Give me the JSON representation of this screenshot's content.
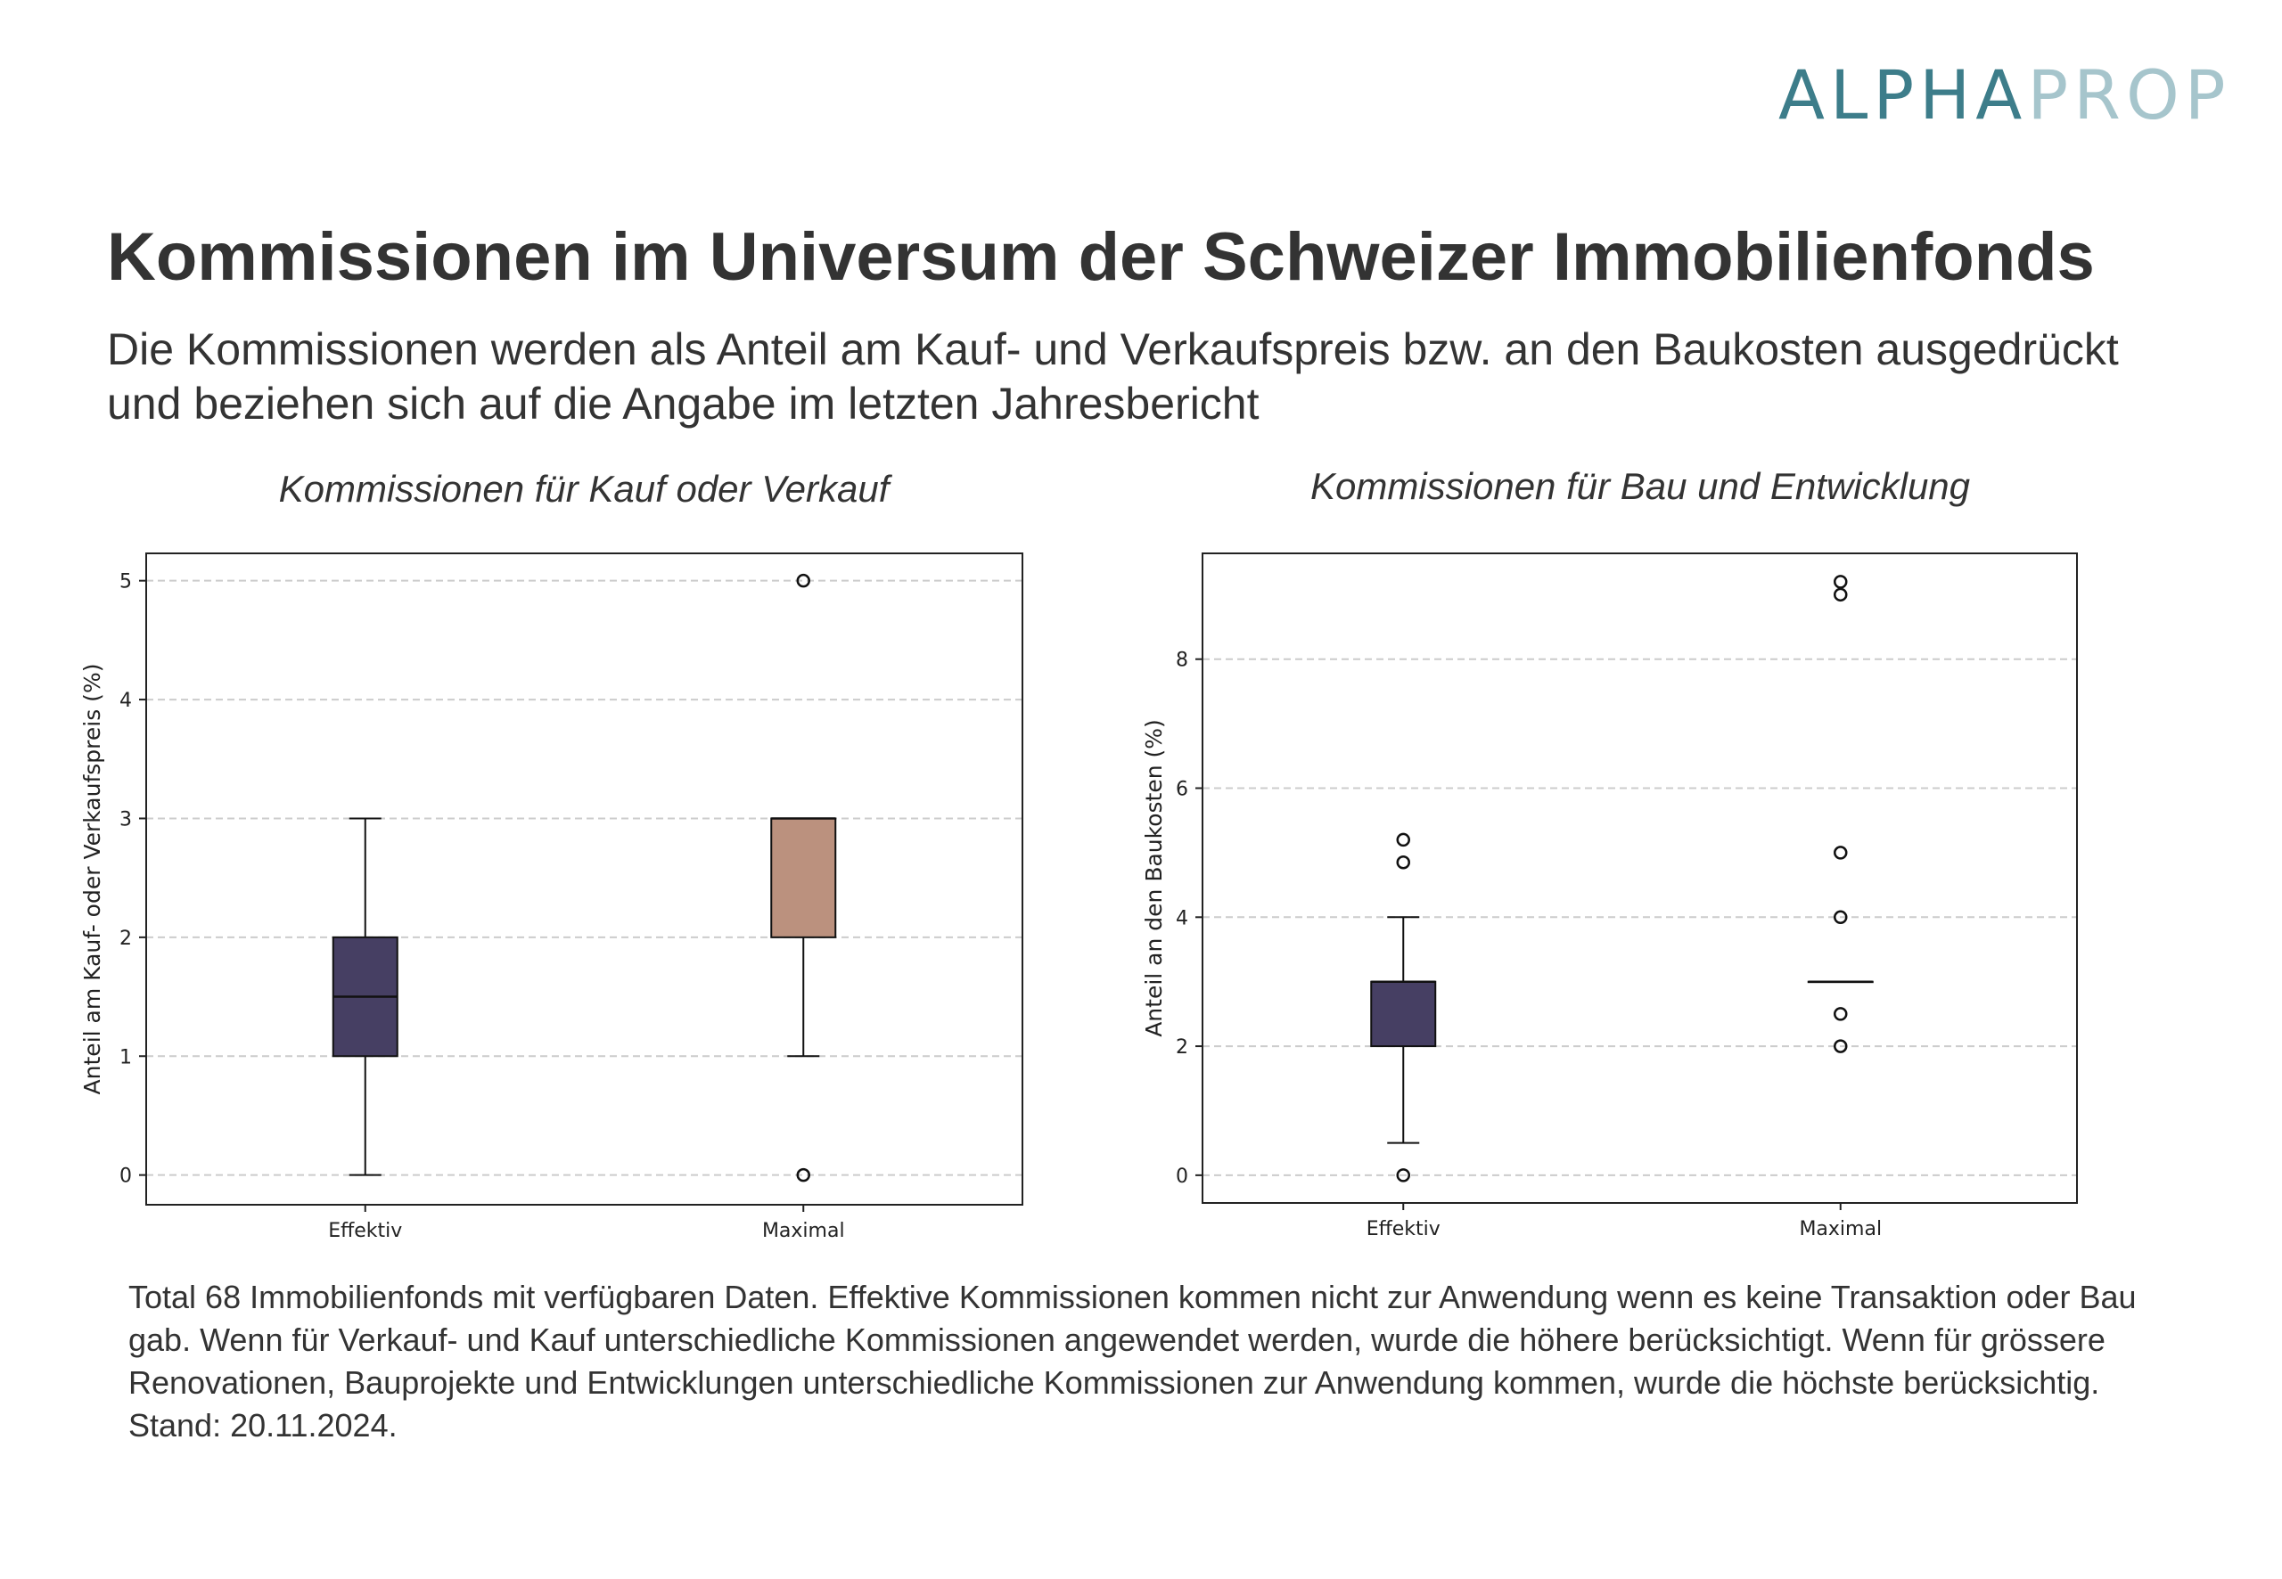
{
  "logo": {
    "part1": "ALPHA",
    "part2": "PROP",
    "colors": [
      "#3d7d8a",
      "#a6c5cc"
    ]
  },
  "header": {
    "title": "Kommissionen im Universum der Schweizer Immobilienfonds",
    "subtitle": "Die Kommissionen werden als Anteil am Kauf- und Verkaufspreis bzw. an den Baukosten ausgedrückt und beziehen sich auf die Angabe im letzten Jahresbericht"
  },
  "footnote": {
    "lines": [
      "Total 68 Immobilienfonds mit verfügbaren Daten. Effektive Kommissionen kommen nicht zur Anwendung wenn es keine Transaktion oder Bau gab. Wenn für Verkauf- und Kauf unterschiedliche Kommissionen angewendet werden, wurde die höhere berücksichtigt. Wenn für grössere Renovationen, Bauprojekte und Entwicklungen unterschiedliche Kommissionen zur Anwendung kommen, wurde die höchste berücksichtig.",
      "Stand: 20.11.2024."
    ]
  },
  "chart_data": [
    {
      "type": "box",
      "title": "Kommissionen für Kauf oder Verkauf",
      "ylabel": "Anteil am Kauf- oder Verkaufspreis (%)",
      "xlabel": "",
      "categories": [
        "Effektiv",
        "Maximal"
      ],
      "ylim": [
        -0.25,
        5.23
      ],
      "yticks": [
        0,
        1,
        2,
        3,
        4,
        5
      ],
      "grid": "y-dashed",
      "boxes": [
        {
          "category": "Effektiv",
          "whisker_low": 0,
          "q1": 1,
          "median": 1.5,
          "q3": 2,
          "whisker_high": 3,
          "outliers": [],
          "color": "#463f63"
        },
        {
          "category": "Maximal",
          "whisker_low": 1,
          "q1": 2,
          "median": 3,
          "q3": 3,
          "whisker_high": 3,
          "outliers": [
            5,
            0
          ],
          "color": "#bb917e"
        }
      ]
    },
    {
      "type": "box",
      "title": "Kommissionen für Bau und Entwicklung",
      "ylabel": "Anteil an den Baukosten (%)",
      "xlabel": "",
      "categories": [
        "Effektiv",
        "Maximal"
      ],
      "ylim": [
        -0.43,
        9.64
      ],
      "yticks": [
        0,
        2,
        4,
        6,
        8
      ],
      "grid": "y-dashed",
      "boxes": [
        {
          "category": "Effektiv",
          "whisker_low": 0.5,
          "q1": 2,
          "median": 3,
          "q3": 3,
          "whisker_high": 4,
          "outliers": [
            5.2,
            4.85,
            0
          ],
          "color": "#463f63"
        },
        {
          "category": "Maximal",
          "whisker_low": 3,
          "q1": 3,
          "median": 3,
          "q3": 3,
          "whisker_high": 3,
          "outliers": [
            9.2,
            9.0,
            5,
            4,
            2.5,
            2
          ],
          "color": "#bb917e"
        }
      ]
    }
  ]
}
